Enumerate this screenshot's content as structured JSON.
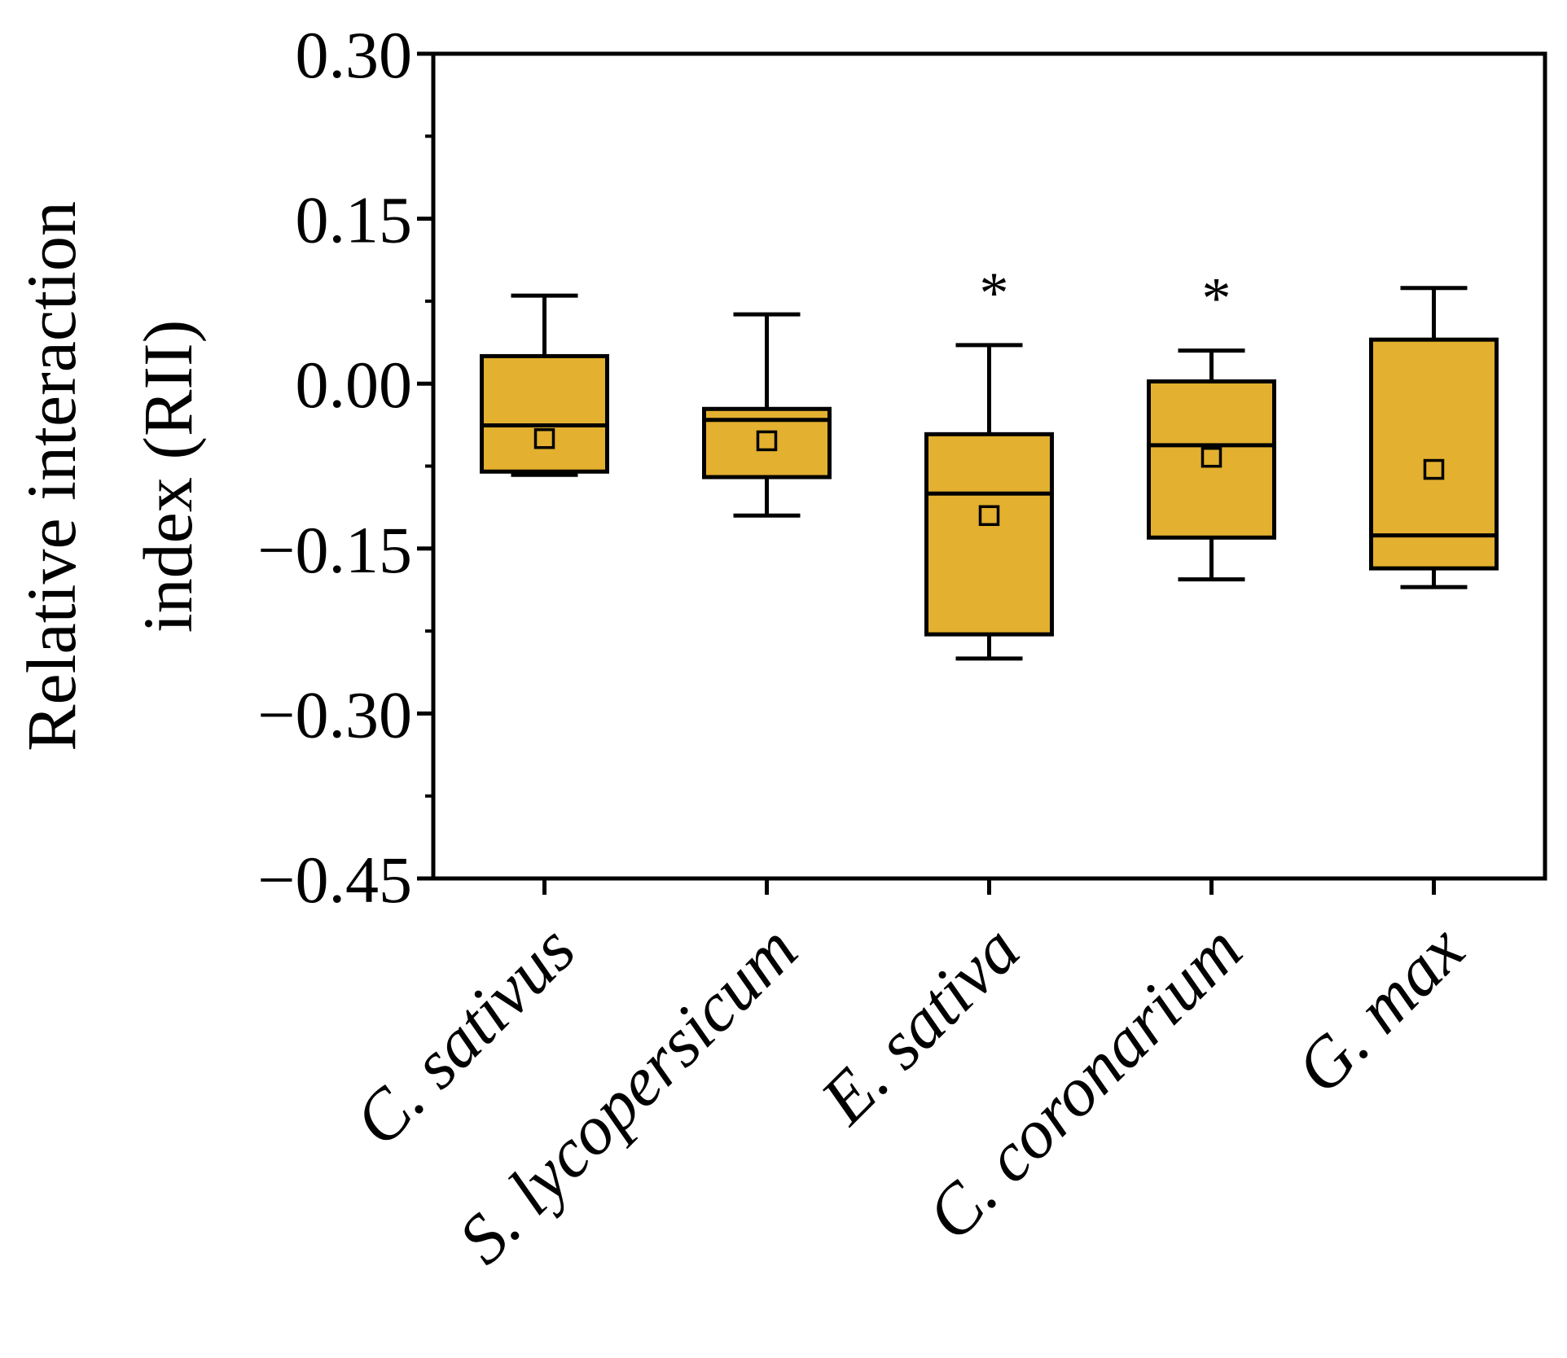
{
  "chart_data": {
    "type": "box",
    "title": "",
    "xlabel": "",
    "ylabel_line1": "Relative interaction",
    "ylabel_line2": "index (RII)",
    "ylim": [
      -0.45,
      0.3
    ],
    "yticks": [
      0.3,
      0.15,
      0.0,
      -0.15,
      -0.3,
      -0.45
    ],
    "ytick_labels": [
      "0.30",
      "0.15",
      "0.00",
      "−0.15",
      "−0.30",
      "−0.45"
    ],
    "minor_tick_step": 0.075,
    "categories": [
      "C. sativus",
      "S. lycopersicum",
      "E. sativa",
      "C. coronarium",
      "G. max"
    ],
    "boxes": [
      {
        "category": "C. sativus",
        "whisker_low": -0.083,
        "q1": -0.08,
        "median": -0.038,
        "q3": 0.025,
        "whisker_high": 0.08,
        "mean": -0.05,
        "significant": false
      },
      {
        "category": "S. lycopersicum",
        "whisker_low": -0.12,
        "q1": -0.085,
        "median": -0.033,
        "q3": -0.023,
        "whisker_high": 0.063,
        "mean": -0.052,
        "significant": false
      },
      {
        "category": "E. sativa",
        "whisker_low": -0.25,
        "q1": -0.228,
        "median": -0.1,
        "q3": -0.046,
        "whisker_high": 0.035,
        "mean": -0.12,
        "significant": true
      },
      {
        "category": "C. coronarium",
        "whisker_low": -0.178,
        "q1": -0.14,
        "median": -0.056,
        "q3": 0.002,
        "whisker_high": 0.03,
        "mean": -0.067,
        "significant": true
      },
      {
        "category": "G. max",
        "whisker_low": -0.185,
        "q1": -0.168,
        "median": -0.138,
        "q3": 0.04,
        "whisker_high": 0.087,
        "mean": -0.078,
        "significant": false
      }
    ],
    "significance_marker": "*",
    "box_color": "#E3B02F",
    "line_color": "#000000"
  }
}
